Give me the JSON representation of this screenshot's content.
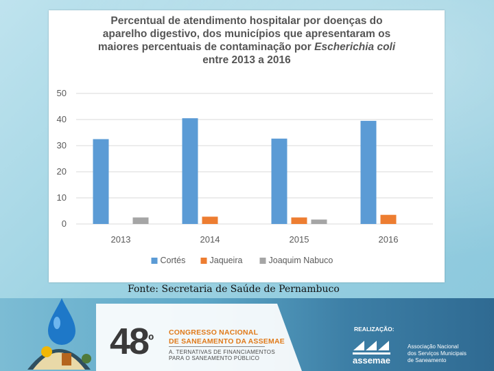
{
  "slide": {
    "source_note": "Fonte: Secretaria de Saúde de Pernambuco"
  },
  "chart_data": {
    "type": "bar",
    "title_lines": [
      "Percentual de atendimento hospitalar por doenças do",
      "aparelho digestivo, dos municípios que apresentaram os",
      "maiores percentuais de contaminação por",
      "entre 2013 a 2016"
    ],
    "title_italic": "Escherichia coli",
    "categories": [
      "2013",
      "2014",
      "2015",
      "2016"
    ],
    "series": [
      {
        "name": "Cortés",
        "color": "#5b9bd5",
        "values": [
          32.5,
          40.5,
          32.7,
          39.5
        ]
      },
      {
        "name": "Jaqueira",
        "color": "#ed7d31",
        "values": [
          0,
          2.8,
          2.5,
          3.5
        ]
      },
      {
        "name": "Joaquim Nabuco",
        "color": "#a5a5a5",
        "values": [
          2.5,
          0,
          1.7,
          0
        ]
      }
    ],
    "y_ticks": [
      "0",
      "10",
      "20",
      "30",
      "40",
      "50"
    ],
    "ylim": [
      0,
      50
    ],
    "gridlines": true,
    "legend_position": "bottom"
  },
  "footer": {
    "edition": "48",
    "edition_suffix": "º",
    "congress_line1": "CONGRESSO NACIONAL",
    "congress_line2": "DE SANEAMENTO DA ASSEMAE",
    "theme_line1": "A. TERNATIVAS DE FINANCIAMENTOS",
    "theme_line2": "PARA O SANEAMENTO PÚBLICO",
    "realizacao": "REALIZAÇÃO:",
    "assemae": "assemae",
    "assoc_line1": "Associação Nacional",
    "assoc_line2": "dos Serviços Municipais",
    "assoc_line3": "de Saneamento",
    "colors": {
      "accent": "#e07a1a",
      "band": "#3d7fa6"
    }
  }
}
